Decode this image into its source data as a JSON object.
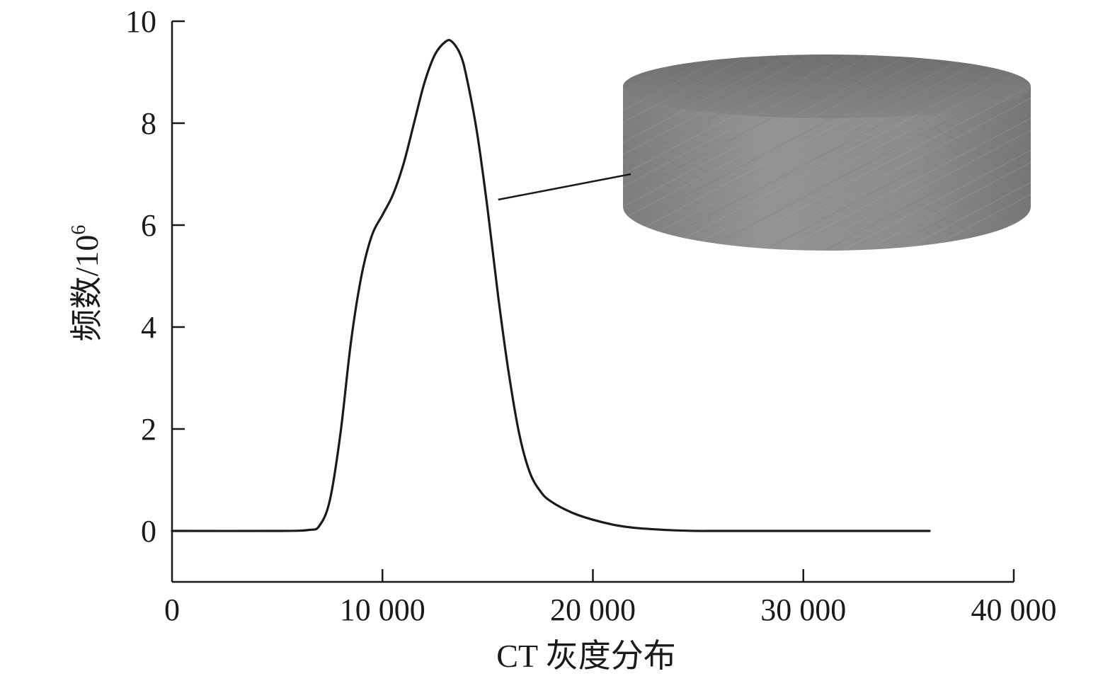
{
  "chart_data": {
    "type": "line",
    "title": "",
    "xlabel": "CT 灰度分布",
    "ylabel_main": "频数/10",
    "ylabel_sup": "6",
    "xlim": [
      0,
      40000
    ],
    "ylim": [
      -1,
      10
    ],
    "xticks": [
      0,
      10000,
      20000,
      30000,
      40000
    ],
    "xtick_labels": [
      "0",
      "10 000",
      "20 000",
      "30 000",
      "40 000"
    ],
    "yticks": [
      0,
      2,
      4,
      6,
      8,
      10
    ],
    "ytick_labels": [
      "0",
      "2",
      "4",
      "6",
      "8",
      "10"
    ],
    "grid": false,
    "legend": "none",
    "series": [
      {
        "x": [
          0,
          5000,
          6500,
          7000,
          7500,
          8000,
          8500,
          9000,
          9500,
          10000,
          10500,
          11000,
          11500,
          12000,
          12500,
          13000,
          13300,
          13700,
          14000,
          14500,
          15000,
          15500,
          16000,
          16500,
          17000,
          17500,
          18000,
          19000,
          20000,
          21000,
          22000,
          23000,
          24000,
          25000,
          26000,
          30000,
          36000
        ],
        "y": [
          0,
          0,
          0.02,
          0.1,
          0.6,
          1.9,
          3.7,
          5.0,
          5.8,
          6.2,
          6.6,
          7.2,
          8.0,
          8.8,
          9.35,
          9.6,
          9.6,
          9.35,
          8.9,
          7.8,
          6.3,
          4.6,
          3.1,
          1.9,
          1.15,
          0.78,
          0.58,
          0.36,
          0.22,
          0.12,
          0.06,
          0.03,
          0.01,
          0.0,
          0,
          0,
          0
        ]
      }
    ],
    "inset": {
      "description_icon": "cylindrical-sample-image",
      "side_color": "#8a8a8a",
      "top_color": "#7a7a7a",
      "leader_from": [
        15500,
        6.5
      ],
      "leader_to": [
        21800,
        7.0
      ]
    }
  }
}
